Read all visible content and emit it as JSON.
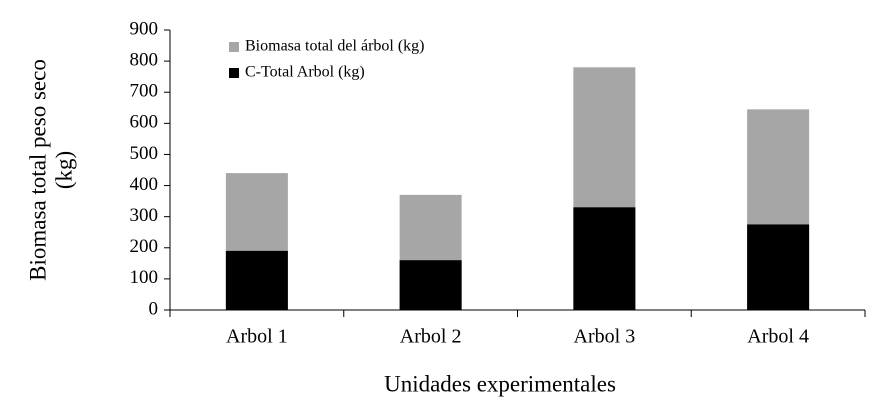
{
  "chart_data": {
    "type": "bar",
    "xlabel": "Unidades experimentales",
    "ylabel": [
      "Biomasa total peso seco",
      "(kg)"
    ],
    "categories": [
      "Arbol 1",
      "Arbol 2",
      "Arbol 3",
      "Arbol 4"
    ],
    "series": [
      {
        "name": "Biomasa total del árbol (kg)",
        "color": "#a6a6a6",
        "values": [
          440,
          370,
          780,
          645
        ]
      },
      {
        "name": "C-Total Arbol (kg)",
        "color": "#000000",
        "values": [
          190,
          160,
          330,
          275
        ]
      }
    ],
    "stacked": false,
    "ylim": [
      0,
      900
    ],
    "yticks": [
      0,
      100,
      200,
      300,
      400,
      500,
      600,
      700,
      800,
      900
    ],
    "grid": false,
    "legend": "upper left"
  }
}
